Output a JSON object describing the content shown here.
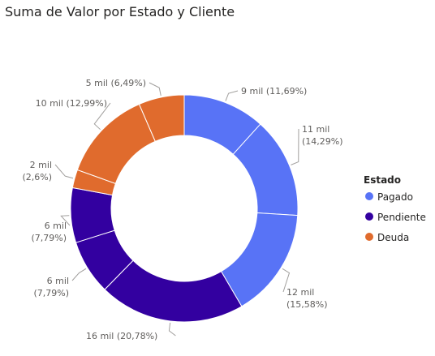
{
  "chart_data": {
    "type": "donut",
    "title": "Suma de Valor por Estado y Cliente",
    "legend": {
      "title": "Estado",
      "placement": "right",
      "entries": [
        {
          "name": "Pagado",
          "color": "#5873f6"
        },
        {
          "name": "Pendiente",
          "color": "#3300a0"
        },
        {
          "name": "Deuda",
          "color": "#e06b2d"
        }
      ]
    },
    "slices": [
      {
        "state": "Pagado",
        "value": 9,
        "percent": 11.69,
        "label": "9 mil (11,69%)"
      },
      {
        "state": "Pagado",
        "value": 11,
        "percent": 14.29,
        "label": [
          "11 mil",
          "(14,29%)"
        ]
      },
      {
        "state": "Pagado",
        "value": 12,
        "percent": 15.58,
        "label": [
          "12 mil",
          "(15,58%)"
        ]
      },
      {
        "state": "Pendiente",
        "value": 16,
        "percent": 20.78,
        "label": "16 mil (20,78%)"
      },
      {
        "state": "Pendiente",
        "value": 6,
        "percent": 7.79,
        "label": [
          "6 mil",
          "(7,79%)"
        ]
      },
      {
        "state": "Pendiente",
        "value": 6,
        "percent": 7.79,
        "label": [
          "6 mil",
          "(7,79%)"
        ]
      },
      {
        "state": "Deuda",
        "value": 2,
        "percent": 2.6,
        "label": [
          "2 mil",
          "(2,6%)"
        ]
      },
      {
        "state": "Deuda",
        "value": 10,
        "percent": 12.99,
        "label": "10 mil (12,99%)"
      },
      {
        "state": "Deuda",
        "value": 5,
        "percent": 6.49,
        "label": "5 mil (6,49%)"
      }
    ]
  }
}
